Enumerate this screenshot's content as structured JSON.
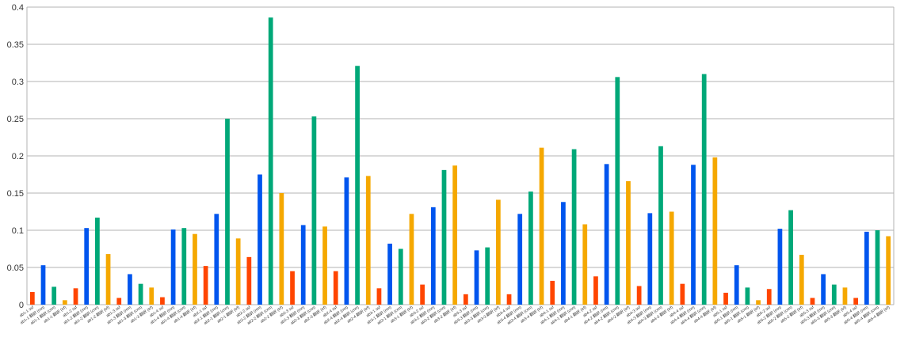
{
  "chart_data": {
    "type": "bar",
    "title": "",
    "xlabel": "",
    "ylabel": "",
    "ylim": [
      0,
      0.4
    ],
    "yticks": [
      "0",
      "0.05",
      "0.1",
      "0.15",
      "0.2",
      "0.25",
      "0.3",
      "0.35",
      "0.4"
    ],
    "grid": true,
    "legend": "none",
    "series_colors": [
      "#ff4500",
      "#0055ee",
      "#00a878",
      "#f5a800"
    ],
    "groups": [
      {
        "labels": [
          "ab1-1 ssf",
          "ab1-1 翻訳 (rnn)",
          "ab1-1 翻訳 (cnn)",
          "ab1-1 翻訳 (trf)"
        ],
        "values": [
          0.017,
          0.053,
          0.024,
          0.006
        ]
      },
      {
        "labels": [
          "ab1-2 ssf",
          "ab1-2 翻訳 (rnn)",
          "ab1-2 翻訳 (cnn)",
          "ab1-2 翻訳 (trf)"
        ],
        "values": [
          0.022,
          0.103,
          0.117,
          0.068
        ]
      },
      {
        "labels": [
          "ab1-3 ssf",
          "ab1-3 翻訳 (rnn)",
          "ab1-3 翻訳 (cnn)",
          "ab1-3 翻訳 (trf)"
        ],
        "values": [
          0.009,
          0.041,
          0.028,
          0.023
        ]
      },
      {
        "labels": [
          "ab1-4 ssf",
          "ab1-4 翻訳 (rnn)",
          "ab1-4 翻訳 (cnn)",
          "ab1-4 翻訳 (trf)"
        ],
        "values": [
          0.01,
          0.101,
          0.103,
          0.095
        ]
      },
      {
        "labels": [
          "ab2-1 ssf",
          "ab2-1 翻訳 (rnn)",
          "ab2-1 翻訳 (cnn)",
          "ab2-1 翻訳 (trf)"
        ],
        "values": [
          0.052,
          0.122,
          0.25,
          0.089
        ]
      },
      {
        "labels": [
          "ab2-2 ssf",
          "ab2-2 翻訳 (rnn)",
          "ab2-2 翻訳 (cnn)",
          "ab2-2 翻訳 (trf)"
        ],
        "values": [
          0.064,
          0.175,
          0.386,
          0.15
        ]
      },
      {
        "labels": [
          "ab2-3 ssf",
          "ab2-3 翻訳 (rnn)",
          "ab2-3 翻訳 (cnn)",
          "ab2-3 翻訳 (trf)"
        ],
        "values": [
          0.045,
          0.107,
          0.253,
          0.105
        ]
      },
      {
        "labels": [
          "ab2-4 ssf",
          "ab2-4 翻訳 (rnn)",
          "ab2-4 翻訳 (cnn)",
          "ab2-4 翻訳 (trf)"
        ],
        "values": [
          0.045,
          0.171,
          0.321,
          0.173
        ]
      },
      {
        "labels": [
          "ab3-1 ssf",
          "ab3-1 翻訳 (rnn)",
          "ab3-1 翻訳 (cnn)",
          "ab3-1 翻訳 (trf)"
        ],
        "values": [
          0.022,
          0.082,
          0.075,
          0.122
        ]
      },
      {
        "labels": [
          "ab3-2 ssf",
          "ab3-2 翻訳 (rnn)",
          "ab3-2 翻訳 (cnn)",
          "ab3-2 翻訳 (trf)"
        ],
        "values": [
          0.027,
          0.131,
          0.181,
          0.187
        ]
      },
      {
        "labels": [
          "ab3-3 ssf",
          "ab3-3 翻訳 (rnn)",
          "ab3-3 翻訳 (cnn)",
          "ab3-3 翻訳 (trf)"
        ],
        "values": [
          0.014,
          0.073,
          0.077,
          0.141
        ]
      },
      {
        "labels": [
          "ab3-4 ssf",
          "ab3-4 翻訳 (rnn)",
          "ab3-4 翻訳 (cnn)",
          "ab3-4 翻訳 (trf)"
        ],
        "values": [
          0.014,
          0.122,
          0.152,
          0.211
        ]
      },
      {
        "labels": [
          "ab4-1 ssf",
          "ab4-1 翻訳 (rnn)",
          "ab4-1 翻訳 (cnn)",
          "ab4-1 翻訳 (trf)"
        ],
        "values": [
          0.032,
          0.138,
          0.209,
          0.108
        ]
      },
      {
        "labels": [
          "ab4-2 ssf",
          "ab4-2 翻訳 (rnn)",
          "ab4-2 翻訳 (cnn)",
          "ab4-2 翻訳 (trf)"
        ],
        "values": [
          0.038,
          0.189,
          0.306,
          0.166
        ]
      },
      {
        "labels": [
          "ab4-3 ssf",
          "ab4-3 翻訳 (rnn)",
          "ab4-3 翻訳 (cnn)",
          "ab4-3 翻訳 (trf)"
        ],
        "values": [
          0.025,
          0.123,
          0.213,
          0.125
        ]
      },
      {
        "labels": [
          "ab4-4 ssf",
          "ab4-4 翻訳 (rnn)",
          "ab4-4 翻訳 (cnn)",
          "ab4-4 翻訳 (trf)"
        ],
        "values": [
          0.028,
          0.188,
          0.31,
          0.198
        ]
      },
      {
        "labels": [
          "ab5-1 ssf",
          "ab5-1 翻訳 (rnn)",
          "ab5-1 翻訳 (cnn)",
          "ab5-1 翻訳 (trf)"
        ],
        "values": [
          0.016,
          0.053,
          0.023,
          0.006
        ]
      },
      {
        "labels": [
          "ab5-2 ssf",
          "ab5-2 翻訳 (rnn)",
          "ab5-2 翻訳 (cnn)",
          "ab5-2 翻訳 (trf)"
        ],
        "values": [
          0.021,
          0.102,
          0.127,
          0.067
        ]
      },
      {
        "labels": [
          "ab5-3 ssf",
          "ab5-3 翻訳 (rnn)",
          "ab5-3 翻訳 (cnn)",
          "ab5-3 翻訳 (trf)"
        ],
        "values": [
          0.009,
          0.041,
          0.027,
          0.023
        ]
      },
      {
        "labels": [
          "ab5-4 ssf",
          "ab5-4 翻訳 (rnn)",
          "ab5-4 翻訳 (cnn)",
          "ab5-4 翻訳 (trf)"
        ],
        "values": [
          0.009,
          0.098,
          0.1,
          0.092
        ]
      }
    ]
  }
}
